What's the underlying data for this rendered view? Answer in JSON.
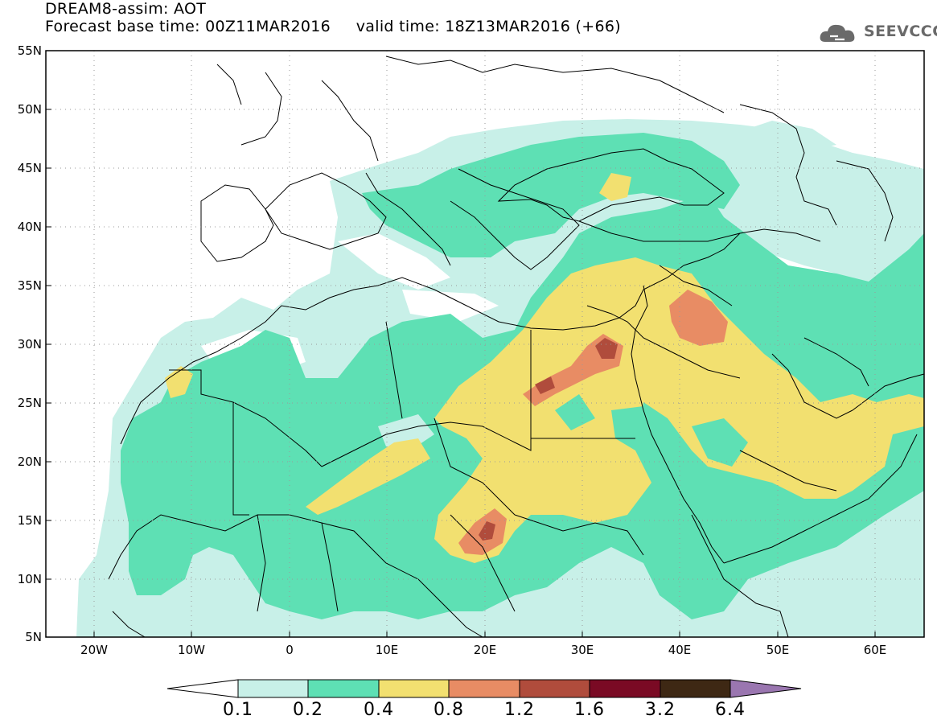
{
  "header": {
    "title_line1": "DREAM8-assim: AOT",
    "title_line2": "Forecast base time: 00Z11MAR2016     valid time: 18Z13MAR2016 (+66)",
    "logo_text": "SEEVCCC"
  },
  "axes": {
    "y_ticks": [
      "55N",
      "50N",
      "45N",
      "40N",
      "35N",
      "30N",
      "25N",
      "20N",
      "15N",
      "10N",
      "5N"
    ],
    "x_ticks": [
      "20W",
      "10W",
      "0",
      "10E",
      "20E",
      "30E",
      "40E",
      "50E",
      "60E"
    ],
    "lon_range": [
      -25,
      65
    ],
    "lat_range": [
      5,
      55
    ]
  },
  "colorbar": {
    "labels": [
      "0.1",
      "0.2",
      "0.4",
      "0.8",
      "1.2",
      "1.6",
      "3.2",
      "6.4"
    ],
    "colors": [
      "#c8f0e8",
      "#5ee0b4",
      "#f2e070",
      "#e88c64",
      "#b04c3c",
      "#7a0a24",
      "#3e2814",
      "#9a76b0"
    ]
  },
  "colors": {
    "c1": "#c8f0e8",
    "c2": "#5ee0b4",
    "c3": "#f2e070",
    "c4": "#e88c64",
    "c5": "#b04c3c",
    "logo": "#6a6a6a"
  }
}
